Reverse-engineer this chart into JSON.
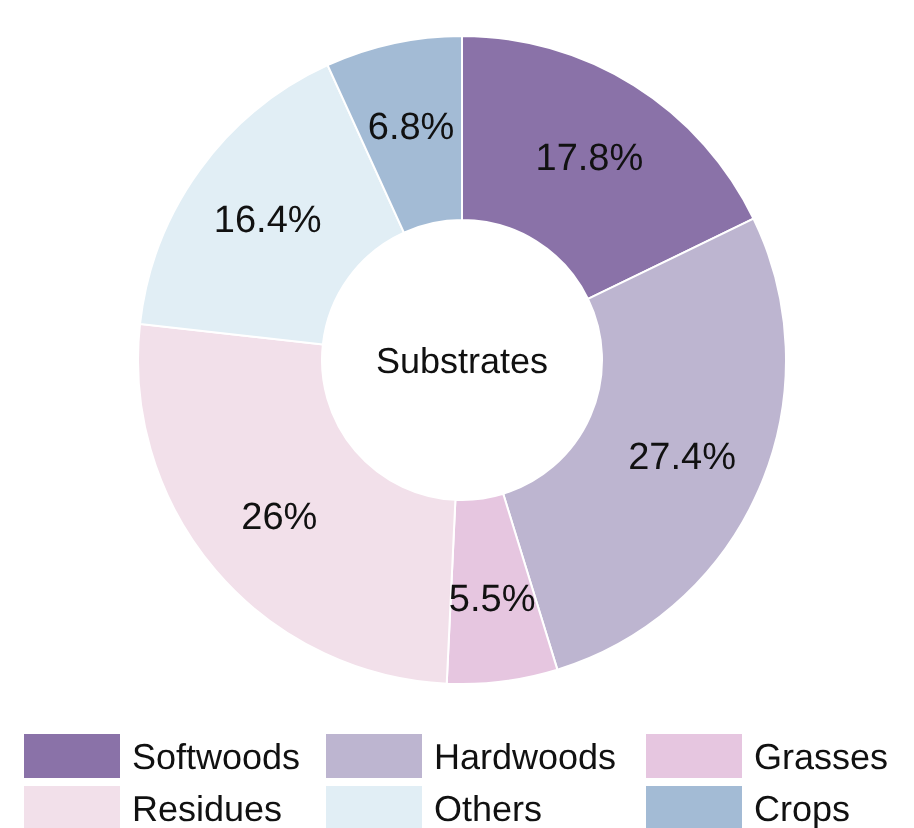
{
  "chart_data": {
    "type": "donut",
    "title": "Substrates",
    "categories": [
      "Softwoods",
      "Hardwoods",
      "Grasses",
      "Residues",
      "Others",
      "Crops"
    ],
    "values": [
      17.8,
      27.4,
      5.5,
      26,
      16.4,
      6.8
    ],
    "value_labels": [
      "17.8%",
      "27.4%",
      "5.5%",
      "26%",
      "16.4%",
      "6.8%"
    ],
    "colors": [
      "#8a72a8",
      "#bdb5d0",
      "#e6c6e0",
      "#f2e0ea",
      "#e1eef5",
      "#a3bbd5"
    ],
    "legend": "bottom"
  }
}
